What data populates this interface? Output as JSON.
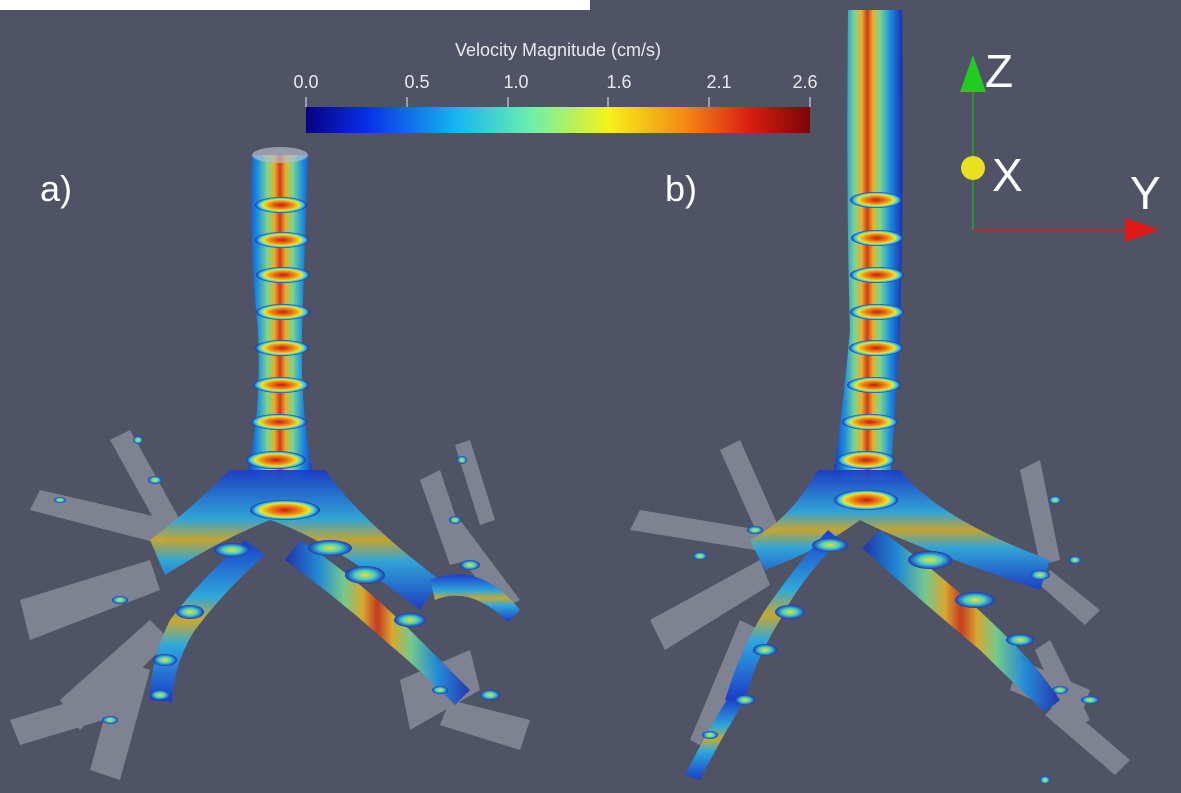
{
  "colorbar": {
    "title": "Velocity Magnitude (cm/s)",
    "ticks": [
      "0.0",
      "0.5",
      "1.0",
      "1.6",
      "2.1",
      "2.6"
    ],
    "colors": [
      "#080082",
      "#0a2ee8",
      "#17b6f0",
      "#6ef0a8",
      "#f5f21a",
      "#f58a14",
      "#d81e10",
      "#7a0608"
    ]
  },
  "panels": {
    "a": "a)",
    "b": "b)"
  },
  "axes": {
    "z": "Z",
    "x": "X",
    "y": "Y"
  },
  "colors": {
    "background": "#4f5365",
    "tissue": "#b8bcc8"
  }
}
